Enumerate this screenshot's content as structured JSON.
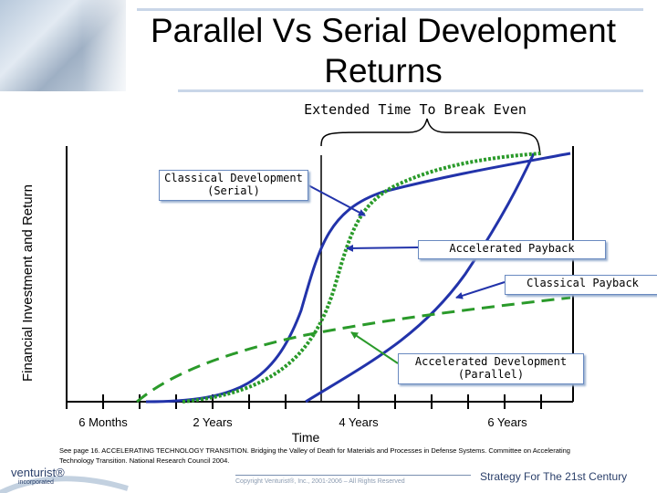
{
  "title": "Parallel Vs Serial Development Returns",
  "annotation_top": "Extended Time To Break Even",
  "y_axis_label": "Financial Investment and Return",
  "x_axis_label": "Time",
  "x_ticks": [
    "6 Months",
    "2 Years",
    "4 Years",
    "6 Years"
  ],
  "callouts": {
    "classical_development": "Classical Development (Serial)",
    "accelerated_payback": "Accelerated Payback",
    "classical_payback": "Classical Payback",
    "accelerated_development": "Accelerated Development (Parallel)"
  },
  "reference": "See page 16. ACCELERATING TECHNOLOGY TRANSITION. Bridging the Valley of Death for Materials and Processes in Defense Systems. Committee on Accelerating Technology Transition. National Research Council 2004.",
  "copyright": "Copyright Venturist®, Inc., 2001-2006 – All Rights Reserved",
  "tagline": "Strategy For The 21st Century",
  "brand": {
    "name": "venturist®",
    "sub": "incorporated"
  },
  "colors": {
    "serial_curve": "#2233aa",
    "parallel_curve": "#2a9a2a",
    "axis": "#000000",
    "callout_arrow": "#2233aa"
  }
}
